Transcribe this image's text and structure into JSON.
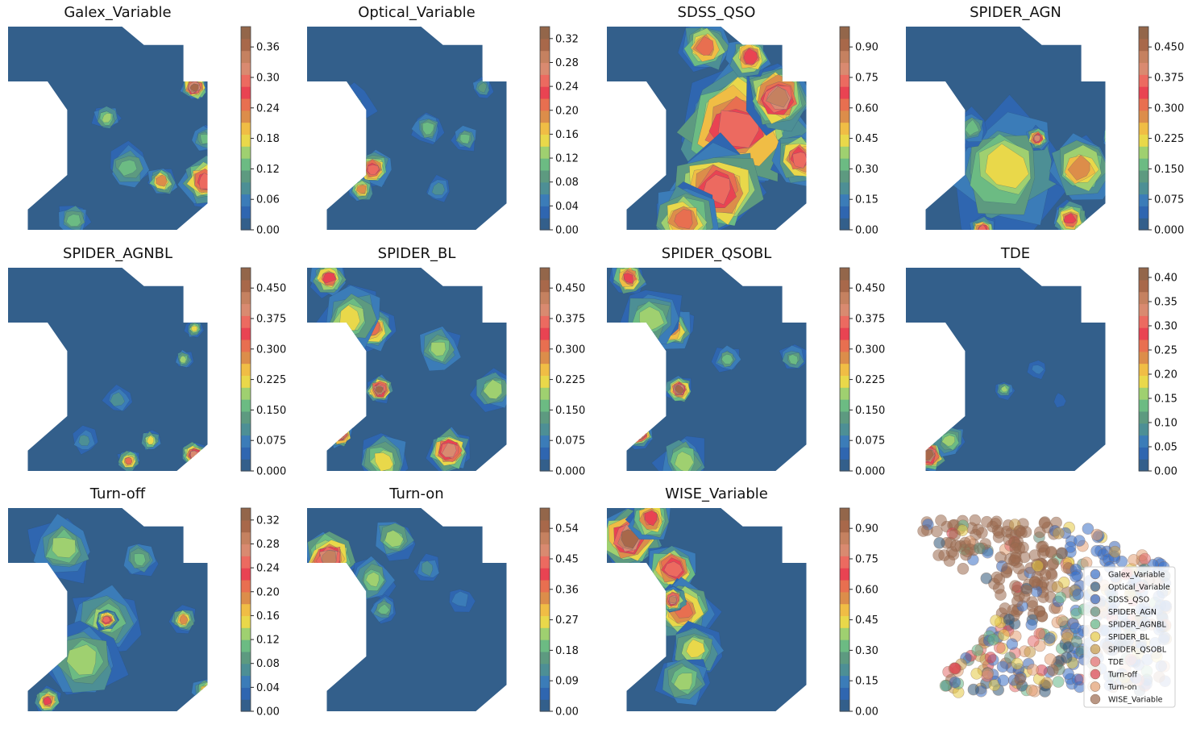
{
  "chart_data": [
    {
      "type": "heatmap",
      "title": "Galex_Variable",
      "colorbar_ticks": [
        "0.00",
        "0.06",
        "0.12",
        "0.18",
        "0.24",
        "0.30",
        "0.36"
      ],
      "colorbar_max": 0.4
    },
    {
      "type": "heatmap",
      "title": "Optical_Variable",
      "colorbar_ticks": [
        "0.00",
        "0.04",
        "0.08",
        "0.12",
        "0.16",
        "0.20",
        "0.24",
        "0.28",
        "0.32"
      ],
      "colorbar_max": 0.34
    },
    {
      "type": "heatmap",
      "title": "SDSS_QSO",
      "colorbar_ticks": [
        "0.00",
        "0.15",
        "0.30",
        "0.45",
        "0.60",
        "0.75",
        "0.90"
      ],
      "colorbar_max": 1.0
    },
    {
      "type": "heatmap",
      "title": "SPIDER_AGN",
      "colorbar_ticks": [
        "0.000",
        "0.075",
        "0.150",
        "0.225",
        "0.300",
        "0.375",
        "0.450"
      ],
      "colorbar_max": 0.5
    },
    {
      "type": "heatmap",
      "title": "SPIDER_AGNBL",
      "colorbar_ticks": [
        "0.000",
        "0.075",
        "0.150",
        "0.225",
        "0.300",
        "0.375",
        "0.450"
      ],
      "colorbar_max": 0.5
    },
    {
      "type": "heatmap",
      "title": "SPIDER_BL",
      "colorbar_ticks": [
        "0.000",
        "0.075",
        "0.150",
        "0.225",
        "0.300",
        "0.375",
        "0.450"
      ],
      "colorbar_max": 0.5
    },
    {
      "type": "heatmap",
      "title": "SPIDER_QSOBL",
      "colorbar_ticks": [
        "0.000",
        "0.075",
        "0.150",
        "0.225",
        "0.300",
        "0.375",
        "0.450"
      ],
      "colorbar_max": 0.5
    },
    {
      "type": "heatmap",
      "title": "TDE",
      "colorbar_ticks": [
        "0.00",
        "0.05",
        "0.10",
        "0.15",
        "0.20",
        "0.25",
        "0.30",
        "0.35",
        "0.40"
      ],
      "colorbar_max": 0.42
    },
    {
      "type": "heatmap",
      "title": "Turn-off",
      "colorbar_ticks": [
        "0.00",
        "0.04",
        "0.08",
        "0.12",
        "0.16",
        "0.20",
        "0.24",
        "0.28",
        "0.32"
      ],
      "colorbar_max": 0.34
    },
    {
      "type": "heatmap",
      "title": "Turn-on",
      "colorbar_ticks": [
        "0.00",
        "0.09",
        "0.18",
        "0.27",
        "0.36",
        "0.45",
        "0.54"
      ],
      "colorbar_max": 0.6
    },
    {
      "type": "heatmap",
      "title": "WISE_Variable",
      "colorbar_ticks": [
        "0.00",
        "0.15",
        "0.30",
        "0.45",
        "0.60",
        "0.75",
        "0.90"
      ],
      "colorbar_max": 1.0
    },
    {
      "type": "scatter",
      "legend_position": "lower-right",
      "series": [
        {
          "name": "Galex_Variable",
          "color": "#3b6fc4"
        },
        {
          "name": "Optical_Variable",
          "color": "#2f5677"
        },
        {
          "name": "SDSS_QSO",
          "color": "#3a64b2"
        },
        {
          "name": "SPIDER_AGN",
          "color": "#5e8c78"
        },
        {
          "name": "SPIDER_AGNBL",
          "color": "#63b587"
        },
        {
          "name": "SPIDER_BL",
          "color": "#e3c844"
        },
        {
          "name": "SPIDER_QSOBL",
          "color": "#c59a48"
        },
        {
          "name": "TDE",
          "color": "#e46d6d"
        },
        {
          "name": "Turn-off",
          "color": "#d9424e"
        },
        {
          "name": "Turn-on",
          "color": "#e3a074"
        },
        {
          "name": "WISE_Variable",
          "color": "#9b6a4e"
        }
      ]
    }
  ],
  "colormap": [
    "#335f8b",
    "#2f66b0",
    "#3b7cb8",
    "#4d8f95",
    "#5d9a80",
    "#6cbb83",
    "#9fd070",
    "#e9d84a",
    "#f0bd45",
    "#dc8d4a",
    "#e86f50",
    "#e94352",
    "#ec6a60",
    "#d98a70",
    "#c58160",
    "#a8684a",
    "#93664a"
  ]
}
